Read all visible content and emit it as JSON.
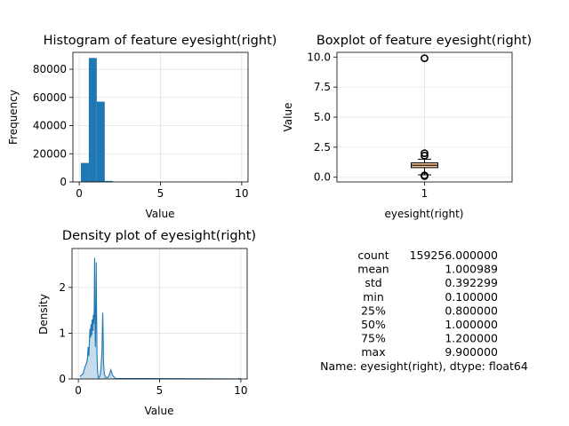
{
  "colors": {
    "bar": "#1f77b4",
    "line": "#1f77b4",
    "fill": "#1f77b4",
    "box": "#f9c89b",
    "median": "#000000"
  },
  "chart_data": [
    {
      "type": "bar",
      "title": "Histogram of feature eyesight(right)",
      "xlabel": "Value",
      "ylabel": "Frequency",
      "xlim": [
        -0.39,
        10.39
      ],
      "ylim": [
        0,
        92000
      ],
      "xticks": [
        0,
        5,
        10
      ],
      "yticks": [
        0,
        20000,
        40000,
        60000,
        80000
      ],
      "grid": true,
      "bins": [
        {
          "x0": 0.1,
          "x1": 0.59,
          "count": 13500
        },
        {
          "x0": 0.59,
          "x1": 1.08,
          "count": 88000
        },
        {
          "x0": 1.08,
          "x1": 1.57,
          "count": 57000
        },
        {
          "x0": 1.57,
          "x1": 2.06,
          "count": 700
        },
        {
          "x0": 9.41,
          "x1": 9.9,
          "count": 40
        }
      ]
    },
    {
      "type": "box",
      "title": "Boxplot of feature eyesight(right)",
      "xlabel": "eyesight(right)",
      "ylabel": "Value",
      "ylim": [
        -0.39,
        10.39
      ],
      "yticks": [
        0.0,
        2.5,
        5.0,
        7.5,
        10.0
      ],
      "xticks": [
        "1"
      ],
      "grid": true,
      "q1": 0.8,
      "median": 1.0,
      "q3": 1.2,
      "whisker_low": 0.2,
      "whisker_high": 1.5,
      "outliers": [
        0.1,
        0.15,
        1.8,
        2.0,
        9.9
      ]
    },
    {
      "type": "area",
      "title": "Density plot of eyesight(right)",
      "xlabel": "Value",
      "ylabel": "Density",
      "xlim": [
        -0.39,
        10.39
      ],
      "ylim": [
        0,
        2.85
      ],
      "xticks": [
        0,
        5,
        10
      ],
      "yticks": [
        0,
        1,
        2
      ],
      "grid": true,
      "x": [
        0.1,
        0.3,
        0.4,
        0.5,
        0.55,
        0.6,
        0.65,
        0.7,
        0.72,
        0.75,
        0.78,
        0.8,
        0.82,
        0.85,
        0.88,
        0.9,
        0.92,
        0.95,
        0.98,
        1.0,
        1.02,
        1.05,
        1.08,
        1.1,
        1.12,
        1.15,
        1.18,
        1.2,
        1.22,
        1.25,
        1.3,
        1.35,
        1.4,
        1.45,
        1.48,
        1.5,
        1.52,
        1.55,
        1.6,
        1.7,
        1.8,
        1.9,
        2.0,
        2.1,
        2.3,
        9.8,
        9.9,
        10.0
      ],
      "y": [
        0.05,
        0.12,
        0.25,
        0.35,
        0.4,
        0.7,
        0.5,
        1.0,
        1.1,
        0.9,
        1.2,
        1.05,
        0.95,
        1.3,
        1.15,
        1.05,
        1.4,
        1.2,
        1.6,
        2.65,
        1.4,
        0.7,
        1.6,
        2.55,
        1.5,
        0.5,
        0.2,
        0.1,
        0.05,
        0.02,
        0.05,
        0.1,
        0.25,
        0.6,
        1.1,
        1.45,
        1.1,
        0.35,
        0.1,
        0.03,
        0.03,
        0.08,
        0.2,
        0.08,
        0.01,
        0.0,
        0.01,
        0.0
      ]
    }
  ],
  "stats": {
    "rows": [
      {
        "label": "count",
        "value": "159256.000000"
      },
      {
        "label": "mean",
        "value": "1.000989"
      },
      {
        "label": "std",
        "value": "0.392299"
      },
      {
        "label": "min",
        "value": "0.100000"
      },
      {
        "label": "25%",
        "value": "0.800000"
      },
      {
        "label": "50%",
        "value": "1.000000"
      },
      {
        "label": "75%",
        "value": "1.200000"
      },
      {
        "label": "max",
        "value": "9.900000"
      }
    ],
    "footer": "Name: eyesight(right), dtype: float64"
  }
}
